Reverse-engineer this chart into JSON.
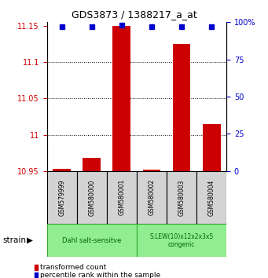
{
  "title": "GDS3873 / 1388217_a_at",
  "samples": [
    "GSM579999",
    "GSM580000",
    "GSM580001",
    "GSM580002",
    "GSM580003",
    "GSM580004"
  ],
  "red_values": [
    10.953,
    10.968,
    11.15,
    10.952,
    11.125,
    11.015
  ],
  "blue_values": [
    97,
    97,
    98,
    97,
    97,
    97
  ],
  "ylim_left": [
    10.95,
    11.155
  ],
  "ylim_right": [
    0,
    100
  ],
  "yticks_left": [
    10.95,
    11.0,
    11.05,
    11.1,
    11.15
  ],
  "yticks_right": [
    0,
    25,
    50,
    75,
    100
  ],
  "ytick_labels_left": [
    "10.95",
    "11",
    "11.05",
    "11.1",
    "11.15"
  ],
  "group1_label": "Dahl salt-sensitve",
  "group2_label": "S.LEW(10)x12x2x3x5\ncongenic",
  "group1_indices": [
    0,
    1,
    2
  ],
  "group2_indices": [
    3,
    4,
    5
  ],
  "strain_label": "strain",
  "legend_red": "transformed count",
  "legend_blue": "percentile rank within the sample",
  "red_color": "#cc0000",
  "blue_color": "#0000cc",
  "group_bg_color": "#90ee90",
  "group_edge_color": "#33aa33",
  "sample_bg_color": "#d3d3d3",
  "bar_bottom": 10.95,
  "title_fontsize": 9,
  "tick_fontsize": 7,
  "label_fontsize": 6.5,
  "legend_fontsize": 6.5,
  "strain_fontsize": 7.5
}
